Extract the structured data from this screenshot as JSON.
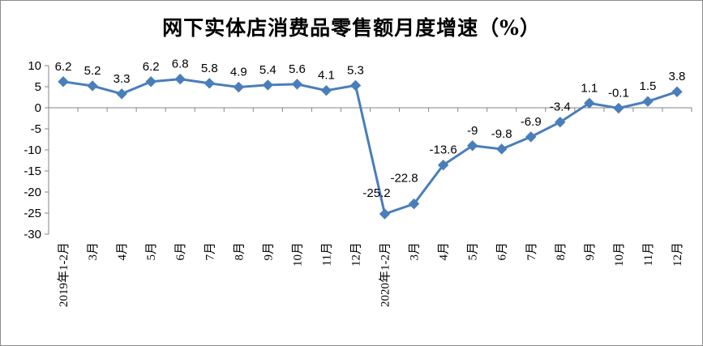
{
  "chart_data": {
    "type": "line",
    "title": "网下实体店消费品零售额月度增速（%）",
    "xlabel": "",
    "ylabel": "",
    "ylim": [
      -30,
      10
    ],
    "yticks": [
      "10",
      "5",
      "0",
      "-5",
      "-10",
      "-15",
      "-20",
      "-25",
      "-30"
    ],
    "grid": false,
    "legend": "none",
    "line_color": "#4a7ebb",
    "categories": [
      "2019年1-2月",
      "3月",
      "4月",
      "5月",
      "6月",
      "7月",
      "8月",
      "9月",
      "10月",
      "11月",
      "12月",
      "2020年1-2月",
      "3月",
      "4月",
      "5月",
      "6月",
      "7月",
      "8月",
      "9月",
      "10月",
      "11月",
      "12月"
    ],
    "values": [
      6.2,
      5.2,
      3.3,
      6.2,
      6.8,
      5.8,
      4.9,
      5.4,
      5.6,
      4.1,
      5.3,
      -25.2,
      -22.8,
      -13.6,
      -9,
      -9.8,
      -6.9,
      -3.4,
      1.1,
      -0.1,
      1.5,
      3.8
    ],
    "data_labels": [
      "6.2",
      "5.2",
      "3.3",
      "6.2",
      "6.8",
      "5.8",
      "4.9",
      "5.4",
      "5.6",
      "4.1",
      "5.3",
      "-25.2",
      "-22.8",
      "-13.6",
      "-9",
      "-9.8",
      "-6.9",
      "-3.4",
      "1.1",
      "-0.1",
      "1.5",
      "3.8"
    ]
  }
}
